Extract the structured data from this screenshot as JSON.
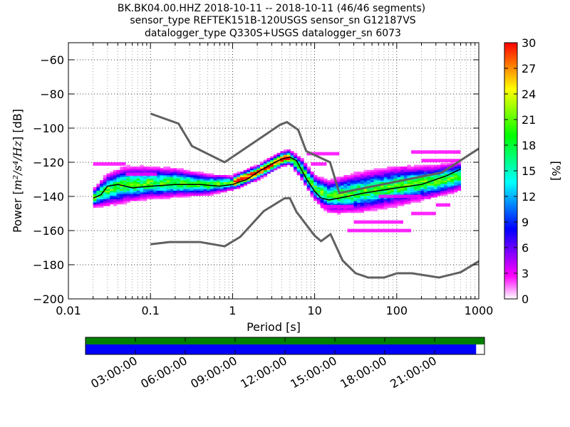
{
  "chart_data": {
    "type": "heatmap",
    "title_lines": [
      "BK.BK04.00.HHZ   2018-10-11 -- 2018-10-11  (46/46 segments)",
      "sensor_type REFTEK151B-120USGS sensor_sn G12187VS",
      "datalogger_type Q330S+USGS datalogger_sn 6073"
    ],
    "xlabel": "Period [s]",
    "ylabel_main": "Power [",
    "ylabel_math": "m²/s⁴/Hz",
    "ylabel_end": "] [dB]",
    "xscale": "log",
    "xlim": [
      0.01,
      1000
    ],
    "ylim": [
      -200,
      -50
    ],
    "x_ticks": [
      {
        "v": 0.01,
        "label": "0.01"
      },
      {
        "v": 0.1,
        "label": "0.1"
      },
      {
        "v": 1,
        "label": "1"
      },
      {
        "v": 10,
        "label": "10"
      },
      {
        "v": 100,
        "label": "100"
      },
      {
        "v": 1000,
        "label": "1000"
      }
    ],
    "y_ticks": [
      {
        "v": -60,
        "label": "−60"
      },
      {
        "v": -80,
        "label": "−80"
      },
      {
        "v": -100,
        "label": "−100"
      },
      {
        "v": -120,
        "label": "−120"
      },
      {
        "v": -140,
        "label": "−140"
      },
      {
        "v": -160,
        "label": "−160"
      },
      {
        "v": -180,
        "label": "−180"
      },
      {
        "v": -200,
        "label": "−200"
      }
    ],
    "grid": "dotted",
    "colorbar": {
      "label": "[%]",
      "min": 0,
      "max": 30,
      "ticks": [
        {
          "v": 0,
          "label": "0"
        },
        {
          "v": 3,
          "label": "3"
        },
        {
          "v": 6,
          "label": "6"
        },
        {
          "v": 9,
          "label": "9"
        },
        {
          "v": 12,
          "label": "12"
        },
        {
          "v": 15,
          "label": "15"
        },
        {
          "v": 18,
          "label": "18"
        },
        {
          "v": 21,
          "label": "21"
        },
        {
          "v": 24,
          "label": "24"
        },
        {
          "v": 27,
          "label": "27"
        },
        {
          "v": 30,
          "label": "30"
        }
      ],
      "stops": [
        "#ffffff",
        "#ff00ff",
        "#8000ff",
        "#0000ff",
        "#0080ff",
        "#00ffff",
        "#00ff80",
        "#00ff00",
        "#80ff00",
        "#ffff00",
        "#ff8000",
        "#ff0000"
      ]
    },
    "noise_models": {
      "color": "#606060",
      "high": [
        {
          "x": 0.1,
          "y": -91.5
        },
        {
          "x": 0.22,
          "y": -97.4
        },
        {
          "x": 0.32,
          "y": -110.5
        },
        {
          "x": 0.8,
          "y": -120.0
        },
        {
          "x": 3.8,
          "y": -98.0
        },
        {
          "x": 4.6,
          "y": -96.5
        },
        {
          "x": 6.3,
          "y": -101.0
        },
        {
          "x": 7.9,
          "y": -113.5
        },
        {
          "x": 15.4,
          "y": -120.0
        },
        {
          "x": 20,
          "y": -138.0
        },
        {
          "x": 354.8,
          "y": -126.0
        },
        {
          "x": 1000,
          "y": -112.0
        }
      ],
      "low": [
        {
          "x": 0.1,
          "y": -168.0
        },
        {
          "x": 0.17,
          "y": -166.7
        },
        {
          "x": 0.4,
          "y": -166.7
        },
        {
          "x": 0.8,
          "y": -169.2
        },
        {
          "x": 1.24,
          "y": -163.7
        },
        {
          "x": 2.4,
          "y": -148.6
        },
        {
          "x": 4.3,
          "y": -141.1
        },
        {
          "x": 5.0,
          "y": -141.1
        },
        {
          "x": 6.0,
          "y": -149.0
        },
        {
          "x": 10.0,
          "y": -163.0
        },
        {
          "x": 12.0,
          "y": -166.2
        },
        {
          "x": 15.6,
          "y": -162.1
        },
        {
          "x": 21.9,
          "y": -177.5
        },
        {
          "x": 31.6,
          "y": -185.0
        },
        {
          "x": 45,
          "y": -187.5
        },
        {
          "x": 70,
          "y": -187.5
        },
        {
          "x": 101,
          "y": -185.0
        },
        {
          "x": 154,
          "y": -185.0
        },
        {
          "x": 328,
          "y": -187.5
        },
        {
          "x": 600,
          "y": -184.4
        },
        {
          "x": 1000,
          "y": -178.0
        }
      ]
    },
    "mode_curve": [
      {
        "x": 0.02,
        "y": -141
      },
      {
        "x": 0.025,
        "y": -139
      },
      {
        "x": 0.03,
        "y": -134
      },
      {
        "x": 0.04,
        "y": -133
      },
      {
        "x": 0.06,
        "y": -135
      },
      {
        "x": 0.1,
        "y": -134
      },
      {
        "x": 0.2,
        "y": -133
      },
      {
        "x": 0.4,
        "y": -133
      },
      {
        "x": 0.7,
        "y": -134
      },
      {
        "x": 1,
        "y": -133
      },
      {
        "x": 1.5,
        "y": -130
      },
      {
        "x": 2,
        "y": -126
      },
      {
        "x": 3,
        "y": -121
      },
      {
        "x": 4,
        "y": -118
      },
      {
        "x": 5,
        "y": -117
      },
      {
        "x": 6,
        "y": -119
      },
      {
        "x": 8,
        "y": -130
      },
      {
        "x": 10,
        "y": -137
      },
      {
        "x": 12,
        "y": -141
      },
      {
        "x": 15,
        "y": -142
      },
      {
        "x": 20,
        "y": -141
      },
      {
        "x": 40,
        "y": -138
      },
      {
        "x": 100,
        "y": -135
      },
      {
        "x": 200,
        "y": -133
      },
      {
        "x": 400,
        "y": -128
      },
      {
        "x": 600,
        "y": -124
      }
    ],
    "ppsd_bands": [
      {
        "x": 0.02,
        "center": -141,
        "spread": 4
      },
      {
        "x": 0.03,
        "center": -136,
        "spread": 8
      },
      {
        "x": 0.05,
        "center": -133,
        "spread": 9
      },
      {
        "x": 0.1,
        "center": -132,
        "spread": 8
      },
      {
        "x": 0.2,
        "center": -132,
        "spread": 7
      },
      {
        "x": 0.5,
        "center": -133,
        "spread": 5
      },
      {
        "x": 1,
        "center": -132,
        "spread": 3
      },
      {
        "x": 2,
        "center": -126,
        "spread": 3
      },
      {
        "x": 4,
        "center": -118,
        "spread": 3
      },
      {
        "x": 5,
        "center": -117,
        "spread": 3
      },
      {
        "x": 7,
        "center": -124,
        "spread": 5
      },
      {
        "x": 10,
        "center": -135,
        "spread": 6
      },
      {
        "x": 15,
        "center": -140,
        "spread": 8
      },
      {
        "x": 30,
        "center": -138,
        "spread": 10
      },
      {
        "x": 100,
        "center": -134,
        "spread": 10
      },
      {
        "x": 300,
        "center": -131,
        "spread": 8
      },
      {
        "x": 600,
        "center": -128,
        "spread": 7
      }
    ],
    "outlier_segments": [
      {
        "x1": 0.02,
        "x2": 0.05,
        "y": -121
      },
      {
        "x1": 0.05,
        "x2": 0.12,
        "y": -127
      },
      {
        "x1": 8,
        "x2": 20,
        "y": -115
      },
      {
        "x1": 9,
        "x2": 14,
        "y": -121
      },
      {
        "x1": 12,
        "x2": 30,
        "y": -146
      },
      {
        "x1": 30,
        "x2": 120,
        "y": -155
      },
      {
        "x1": 25,
        "x2": 150,
        "y": -160
      },
      {
        "x1": 200,
        "x2": 600,
        "y": -119
      },
      {
        "x1": 150,
        "x2": 600,
        "y": -114
      },
      {
        "x1": 150,
        "x2": 300,
        "y": -150
      },
      {
        "x1": 300,
        "x2": 450,
        "y": -145
      },
      {
        "x1": 60,
        "x2": 200,
        "y": -140
      }
    ],
    "timeline": {
      "ticks": [
        "03:00:00",
        "06:00:00",
        "09:00:00",
        "12:00:00",
        "15:00:00",
        "18:00:00",
        "21:00:00"
      ],
      "data_color": "#008000",
      "used_color": "#0000ff",
      "coverage_fraction": 0.979
    }
  }
}
